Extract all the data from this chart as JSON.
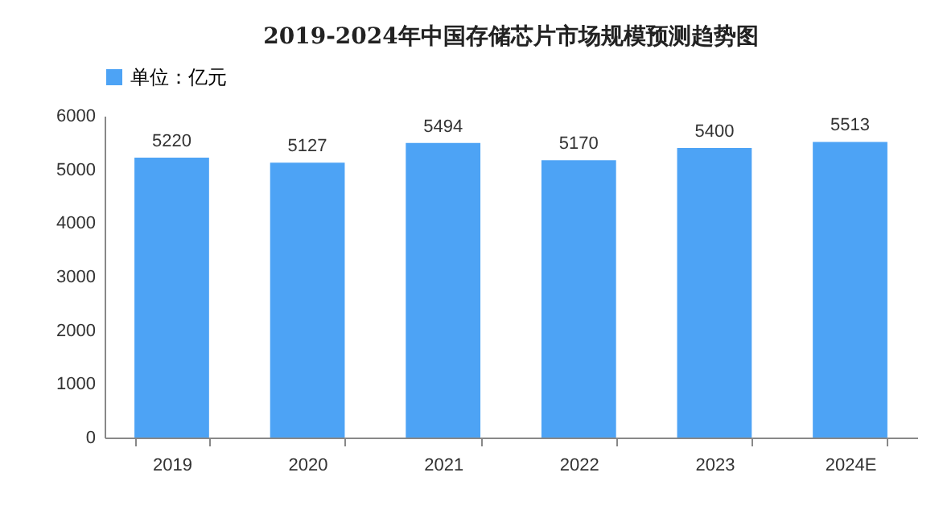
{
  "chart_data": {
    "type": "bar",
    "title": "2019-2024年中国存储芯片市场规模预测趋势图",
    "categories": [
      "2019",
      "2020",
      "2021",
      "2022",
      "2023",
      "2024E"
    ],
    "series": [
      {
        "name": "单位：亿元",
        "color": "#4da3f5",
        "values": [
          5220,
          5127,
          5494,
          5170,
          5400,
          5513
        ]
      }
    ],
    "ylim": [
      0,
      6000
    ],
    "yticks": [
      0,
      1000,
      2000,
      3000,
      4000,
      5000,
      6000
    ],
    "grid": false,
    "legend": "top",
    "data_labels": true
  }
}
